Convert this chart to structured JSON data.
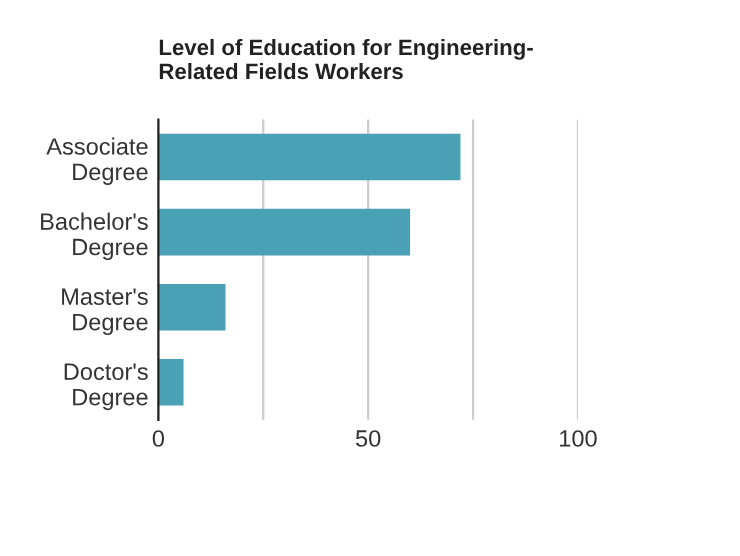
{
  "chart_data": {
    "type": "bar",
    "orientation": "horizontal",
    "title": "Level of Education for Engineering-\nRelated Fields Workers",
    "categories": [
      "Associate\nDegree",
      "Bachelor's\nDegree",
      "Master's\nDegree",
      "Doctor's\nDegree"
    ],
    "values": [
      72,
      60,
      16,
      6
    ],
    "color": "#4aa0b5",
    "xlim": [
      0,
      100
    ],
    "xticks": [
      0,
      {
        "value": 25,
        "label": null
      },
      50,
      {
        "value": 75,
        "label": null
      },
      100
    ],
    "grid": "x"
  }
}
